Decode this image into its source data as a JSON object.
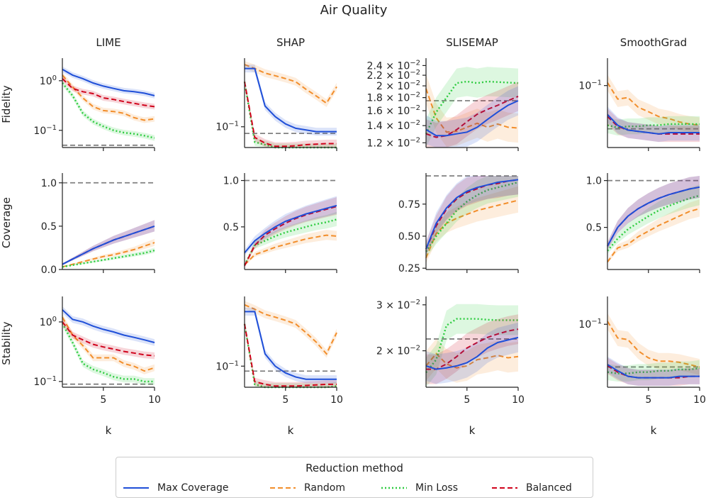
{
  "chart_data": {
    "type": "line",
    "title": "Air Quality",
    "xlabel": "k",
    "xlim": [
      1,
      10
    ],
    "xticks": [
      "5",
      "10"
    ],
    "columns": [
      "LIME",
      "SHAP",
      "SLISEMAP",
      "SmoothGrad"
    ],
    "rows": [
      "Fidelity",
      "Coverage",
      "Stability"
    ],
    "legend": {
      "title": "Reduction method",
      "entries": [
        {
          "name": "Max Coverage",
          "color": "#1f4fd8",
          "style": "solid"
        },
        {
          "name": "Random",
          "color": "#f28e2b",
          "style": "dashed"
        },
        {
          "name": "Min Loss",
          "color": "#2ecc40",
          "style": "dotted"
        },
        {
          "name": "Balanced",
          "color": "#d0021b",
          "style": "dashed"
        }
      ]
    },
    "x": [
      1,
      2,
      3,
      4,
      5,
      6,
      7,
      8,
      9,
      10
    ],
    "panels": [
      {
        "row": "Fidelity",
        "column": "LIME",
        "scale": "log",
        "ylim": [
          0.045,
          2.5
        ],
        "reference": 0.05,
        "yticks": [
          {
            "v": 1,
            "label": "10^0"
          },
          {
            "v": 0.1,
            "label": "10^-1"
          }
        ],
        "series": {
          "Max Coverage": [
            1.7,
            1.3,
            1.1,
            0.9,
            0.78,
            0.7,
            0.63,
            0.6,
            0.56,
            0.5
          ],
          "Random": [
            1.3,
            0.75,
            0.45,
            0.3,
            0.25,
            0.24,
            0.22,
            0.18,
            0.16,
            0.17
          ],
          "Min Loss": [
            0.9,
            0.5,
            0.22,
            0.15,
            0.12,
            0.1,
            0.09,
            0.085,
            0.078,
            0.07
          ],
          "Balanced": [
            1.1,
            0.7,
            0.6,
            0.55,
            0.45,
            0.42,
            0.38,
            0.35,
            0.32,
            0.3
          ]
        }
      },
      {
        "row": "Fidelity",
        "column": "SHAP",
        "scale": "log",
        "ylim": [
          0.05,
          0.9
        ],
        "reference": 0.08,
        "yticks": [
          {
            "v": 0.1,
            "label": "10^-1"
          }
        ],
        "series": {
          "Max Coverage": [
            0.7,
            0.7,
            0.2,
            0.14,
            0.11,
            0.095,
            0.09,
            0.085,
            0.085,
            0.085
          ],
          "Random": [
            0.8,
            0.7,
            0.6,
            0.55,
            0.5,
            0.45,
            0.35,
            0.28,
            0.22,
            0.38
          ],
          "Min Loss": [
            0.45,
            0.06,
            0.055,
            0.05,
            0.05,
            0.05,
            0.05,
            0.05,
            0.05,
            0.05
          ],
          "Balanced": [
            0.45,
            0.07,
            0.058,
            0.052,
            0.052,
            0.053,
            0.055,
            0.056,
            0.057,
            0.057
          ]
        }
      },
      {
        "row": "Fidelity",
        "column": "SLISEMAP",
        "scale": "log",
        "ylim": [
          0.0115,
          0.025
        ],
        "reference": 0.0175,
        "yticks": [
          {
            "v": 0.024,
            "label": "2.4 × 10^-2"
          },
          {
            "v": 0.022,
            "label": "2.2 × 10^-2"
          },
          {
            "v": 0.02,
            "label": "2 × 10^-2"
          },
          {
            "v": 0.018,
            "label": "1.8 × 10^-2"
          },
          {
            "v": 0.016,
            "label": "1.6 × 10^-2"
          },
          {
            "v": 0.014,
            "label": "1.4 × 10^-2"
          },
          {
            "v": 0.012,
            "label": "1.2 × 10^-2"
          }
        ],
        "series": {
          "Max Coverage": [
            0.0135,
            0.0128,
            0.0128,
            0.013,
            0.0132,
            0.0138,
            0.0148,
            0.0158,
            0.0168,
            0.0175
          ],
          "Random": [
            0.0195,
            0.015,
            0.0132,
            0.0133,
            0.0138,
            0.0143,
            0.0138,
            0.0142,
            0.0138,
            0.0137
          ],
          "Min Loss": [
            0.013,
            0.0158,
            0.018,
            0.0205,
            0.0208,
            0.0205,
            0.0208,
            0.0207,
            0.0206,
            0.0205
          ],
          "Balanced": [
            0.013,
            0.0126,
            0.0128,
            0.0135,
            0.0145,
            0.0155,
            0.0162,
            0.0168,
            0.0175,
            0.0182
          ]
        }
      },
      {
        "row": "Fidelity",
        "column": "SmoothGrad",
        "scale": "log",
        "ylim": [
          0.036,
          0.15
        ],
        "reference": 0.049,
        "yticks": [
          {
            "v": 0.1,
            "label": "10^-1"
          }
        ],
        "series": {
          "Max Coverage": [
            0.062,
            0.052,
            0.048,
            0.047,
            0.046,
            0.045,
            0.046,
            0.046,
            0.046,
            0.046
          ],
          "Random": [
            0.105,
            0.08,
            0.082,
            0.07,
            0.065,
            0.06,
            0.058,
            0.055,
            0.053,
            0.052
          ],
          "Min Loss": [
            0.052,
            0.05,
            0.051,
            0.051,
            0.052,
            0.052,
            0.053,
            0.053,
            0.053,
            0.053
          ],
          "Balanced": [
            0.06,
            0.051,
            0.048,
            0.047,
            0.046,
            0.045,
            0.045,
            0.045,
            0.045,
            0.045
          ]
        }
      },
      {
        "row": "Coverage",
        "column": "LIME",
        "scale": "linear",
        "ylim": [
          0,
          1.08
        ],
        "reference": 1.0,
        "yticks": [
          {
            "v": 1.0,
            "label": "1.0"
          },
          {
            "v": 0.5,
            "label": "0.5"
          },
          {
            "v": 0.0,
            "label": "0.0"
          }
        ],
        "series": {
          "Max Coverage": [
            0.06,
            0.12,
            0.18,
            0.24,
            0.29,
            0.34,
            0.38,
            0.42,
            0.46,
            0.5
          ],
          "Random": [
            0.03,
            0.06,
            0.09,
            0.12,
            0.15,
            0.17,
            0.2,
            0.23,
            0.27,
            0.31
          ],
          "Min Loss": [
            0.03,
            0.05,
            0.07,
            0.09,
            0.11,
            0.13,
            0.15,
            0.17,
            0.19,
            0.22
          ],
          "Balanced": [
            0.06,
            0.12,
            0.18,
            0.24,
            0.29,
            0.34,
            0.38,
            0.42,
            0.46,
            0.5
          ]
        }
      },
      {
        "row": "Coverage",
        "column": "SHAP",
        "scale": "linear",
        "ylim": [
          0.04,
          1.05
        ],
        "reference": 1.0,
        "yticks": [
          {
            "v": 1.0,
            "label": "1.0"
          },
          {
            "v": 0.5,
            "label": "0.5"
          }
        ],
        "series": {
          "Max Coverage": [
            0.22,
            0.35,
            0.43,
            0.5,
            0.56,
            0.6,
            0.64,
            0.67,
            0.7,
            0.73
          ],
          "Random": [
            0.09,
            0.2,
            0.24,
            0.28,
            0.31,
            0.34,
            0.37,
            0.39,
            0.41,
            0.4
          ],
          "Min Loss": [
            0.09,
            0.3,
            0.35,
            0.4,
            0.44,
            0.47,
            0.5,
            0.53,
            0.55,
            0.58
          ],
          "Balanced": [
            0.08,
            0.3,
            0.41,
            0.48,
            0.54,
            0.59,
            0.63,
            0.66,
            0.69,
            0.72
          ]
        }
      },
      {
        "row": "Coverage",
        "column": "SLISEMAP",
        "scale": "linear",
        "ylim": [
          0.24,
          0.97
        ],
        "reference": 0.97,
        "yticks": [
          {
            "v": 0.75,
            "label": "0.75"
          },
          {
            "v": 0.5,
            "label": "0.50"
          },
          {
            "v": 0.25,
            "label": "0.25"
          }
        ],
        "series": {
          "Max Coverage": [
            0.4,
            0.6,
            0.72,
            0.8,
            0.85,
            0.88,
            0.9,
            0.92,
            0.93,
            0.94
          ],
          "Random": [
            0.33,
            0.52,
            0.6,
            0.64,
            0.67,
            0.7,
            0.72,
            0.74,
            0.76,
            0.78
          ],
          "Min Loss": [
            0.38,
            0.5,
            0.6,
            0.7,
            0.77,
            0.82,
            0.86,
            0.88,
            0.9,
            0.92
          ],
          "Balanced": [
            0.4,
            0.58,
            0.71,
            0.79,
            0.84,
            0.87,
            0.9,
            0.91,
            0.93,
            0.94
          ]
        }
      },
      {
        "row": "Coverage",
        "column": "SmoothGrad",
        "scale": "linear",
        "ylim": [
          0.05,
          1.05
        ],
        "reference": 1.0,
        "yticks": [
          {
            "v": 1.0,
            "label": "1.0"
          },
          {
            "v": 0.5,
            "label": "0.5"
          }
        ],
        "series": {
          "Max Coverage": [
            0.3,
            0.5,
            0.62,
            0.7,
            0.76,
            0.81,
            0.85,
            0.88,
            0.91,
            0.93
          ],
          "Random": [
            0.13,
            0.28,
            0.32,
            0.4,
            0.46,
            0.52,
            0.57,
            0.62,
            0.67,
            0.7
          ],
          "Min Loss": [
            0.25,
            0.38,
            0.48,
            0.55,
            0.62,
            0.68,
            0.73,
            0.77,
            0.81,
            0.84
          ],
          "Balanced": [
            0.3,
            0.5,
            0.62,
            0.7,
            0.76,
            0.81,
            0.85,
            0.88,
            0.91,
            0.93
          ]
        }
      },
      {
        "row": "Stability",
        "column": "LIME",
        "scale": "log",
        "ylim": [
          0.08,
          2.4
        ],
        "reference": 0.09,
        "yticks": [
          {
            "v": 1,
            "label": "10^0"
          },
          {
            "v": 0.1,
            "label": "10^-1"
          }
        ],
        "series": {
          "Max Coverage": [
            1.6,
            1.1,
            1.0,
            0.85,
            0.75,
            0.68,
            0.6,
            0.55,
            0.5,
            0.45
          ],
          "Random": [
            1.2,
            0.6,
            0.4,
            0.25,
            0.25,
            0.25,
            0.2,
            0.18,
            0.15,
            0.17
          ],
          "Min Loss": [
            0.95,
            0.45,
            0.2,
            0.16,
            0.14,
            0.12,
            0.11,
            0.11,
            0.1,
            0.1
          ],
          "Balanced": [
            1.0,
            0.6,
            0.5,
            0.42,
            0.38,
            0.35,
            0.32,
            0.3,
            0.28,
            0.27
          ]
        }
      },
      {
        "row": "Stability",
        "column": "SHAP",
        "scale": "log",
        "ylim": [
          0.05,
          0.9
        ],
        "reference": 0.085,
        "yticks": [
          {
            "v": 0.1,
            "label": "10^-1"
          }
        ],
        "series": {
          "Max Coverage": [
            0.6,
            0.6,
            0.15,
            0.1,
            0.08,
            0.07,
            0.065,
            0.065,
            0.065,
            0.065
          ],
          "Random": [
            0.75,
            0.65,
            0.55,
            0.5,
            0.45,
            0.4,
            0.3,
            0.22,
            0.15,
            0.3
          ],
          "Min Loss": [
            0.4,
            0.055,
            0.05,
            0.05,
            0.05,
            0.05,
            0.05,
            0.05,
            0.05,
            0.052
          ],
          "Balanced": [
            0.4,
            0.06,
            0.055,
            0.052,
            0.052,
            0.052,
            0.053,
            0.054,
            0.055,
            0.055
          ]
        }
      },
      {
        "row": "Stability",
        "column": "SLISEMAP",
        "scale": "log",
        "ylim": [
          0.0145,
          0.0315
        ],
        "reference": 0.0222,
        "yticks": [
          {
            "v": 0.03,
            "label": "3 × 10^-2"
          },
          {
            "v": 0.02,
            "label": "2 × 10^-2"
          }
        ],
        "series": {
          "Max Coverage": [
            0.0175,
            0.017,
            0.0172,
            0.0175,
            0.018,
            0.019,
            0.0205,
            0.0215,
            0.022,
            0.0225
          ],
          "Random": [
            0.0175,
            0.0195,
            0.0178,
            0.0172,
            0.0175,
            0.0185,
            0.0188,
            0.0192,
            0.0188,
            0.019
          ],
          "Min Loss": [
            0.0165,
            0.0185,
            0.025,
            0.0265,
            0.0265,
            0.0265,
            0.0263,
            0.0262,
            0.0262,
            0.0262
          ],
          "Balanced": [
            0.017,
            0.017,
            0.0178,
            0.019,
            0.0205,
            0.0215,
            0.0225,
            0.0232,
            0.0238,
            0.0242
          ]
        }
      },
      {
        "row": "Stability",
        "column": "SmoothGrad",
        "scale": "log",
        "ylim": [
          0.036,
          0.15
        ],
        "reference": 0.05,
        "yticks": [
          {
            "v": 0.1,
            "label": "10^-1"
          }
        ],
        "series": {
          "Max Coverage": [
            0.052,
            0.047,
            0.043,
            0.042,
            0.042,
            0.042,
            0.042,
            0.043,
            0.043,
            0.043
          ],
          "Random": [
            0.105,
            0.08,
            0.078,
            0.065,
            0.058,
            0.055,
            0.055,
            0.054,
            0.052,
            0.05
          ],
          "Min Loss": [
            0.046,
            0.045,
            0.045,
            0.046,
            0.046,
            0.047,
            0.047,
            0.048,
            0.048,
            0.049
          ],
          "Balanced": [
            0.051,
            0.046,
            0.043,
            0.042,
            0.042,
            0.042,
            0.042,
            0.042,
            0.043,
            0.043
          ]
        }
      }
    ]
  }
}
